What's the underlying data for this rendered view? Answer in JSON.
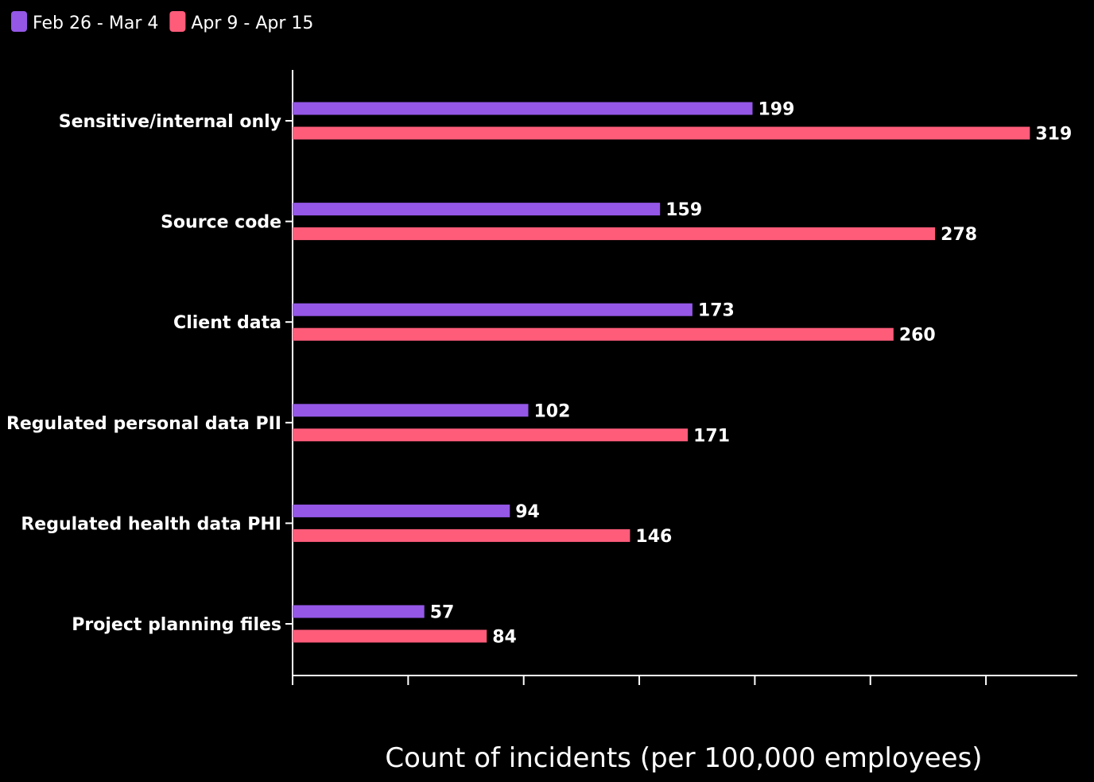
{
  "chart_data": {
    "type": "bar",
    "orientation": "horizontal",
    "categories": [
      "Sensitive/internal only",
      "Source code",
      "Client data",
      "Regulated personal data PII",
      "Regulated health data PHI",
      "Project planning files"
    ],
    "series": [
      {
        "name": "Feb 26 - Mar 4",
        "color": "#9457e6",
        "values": [
          199,
          159,
          173,
          102,
          94,
          57
        ]
      },
      {
        "name": "Apr 9 - Apr 15",
        "color": "#ff5c7a",
        "values": [
          319,
          278,
          260,
          171,
          146,
          84
        ]
      }
    ],
    "xlabel": "Count of incidents (per 100,000 employees)",
    "ylabel": "",
    "xlim": [
      0,
      340
    ],
    "x_ticks": [
      0,
      50,
      100,
      150,
      200,
      250,
      300
    ],
    "x_tick_labels_shown": false,
    "legend_position": "top-left",
    "grid": false,
    "data_labels": true
  }
}
